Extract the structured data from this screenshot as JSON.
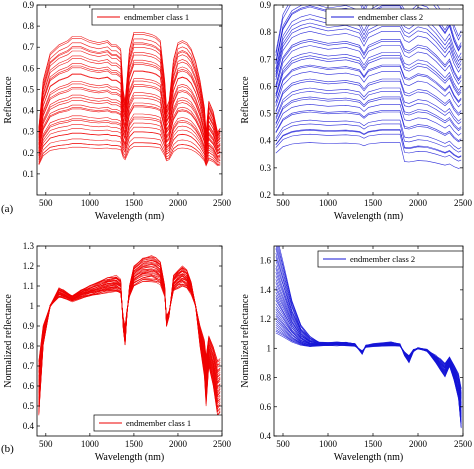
{
  "panel_tags": [
    "(a)",
    "(b)"
  ],
  "chart_data": [
    {
      "type": "line",
      "id": "a1",
      "xlabel": "Wavelength (nm)",
      "ylabel": "Reflectance",
      "xlim": [
        400,
        2500
      ],
      "ylim": [
        0,
        0.9
      ],
      "xticks": [
        500,
        1000,
        1500,
        2000,
        2500
      ],
      "yticks": [
        0.1,
        0.2,
        0.3,
        0.4,
        0.5,
        0.6,
        0.7,
        0.8,
        0.9
      ],
      "color": "#ee0000",
      "legend": "endmember class 1",
      "legend_position": "top-right",
      "grid": false,
      "series_count": 34,
      "value_range": {
        "min": 0.1,
        "max": 0.79
      },
      "series": [
        {
          "x": [
            420,
            470,
            550,
            650,
            750,
            800,
            900,
            1000,
            1100,
            1200,
            1250,
            1300,
            1350,
            1380,
            1400,
            1420,
            1450,
            1500,
            1600,
            1700,
            1750,
            1800,
            1850,
            1870,
            1900,
            1950,
            2000,
            2050,
            2100,
            2150,
            2200,
            2250,
            2300,
            2320,
            2350,
            2400,
            2450,
            2480
          ],
          "y": [
            0.32,
            0.55,
            0.68,
            0.72,
            0.74,
            0.76,
            0.76,
            0.74,
            0.73,
            0.74,
            0.72,
            0.72,
            0.7,
            0.5,
            0.45,
            0.55,
            0.7,
            0.78,
            0.78,
            0.77,
            0.76,
            0.74,
            0.55,
            0.42,
            0.45,
            0.65,
            0.73,
            0.74,
            0.73,
            0.7,
            0.64,
            0.55,
            0.42,
            0.3,
            0.45,
            0.4,
            0.3,
            0.32
          ]
        }
      ]
    },
    {
      "type": "line",
      "id": "a2",
      "xlabel": "Wavelength (nm)",
      "ylabel": "Reflectance",
      "xlim": [
        400,
        2500
      ],
      "ylim": [
        0.2,
        0.9
      ],
      "xticks": [
        500,
        1000,
        1500,
        2000,
        2500
      ],
      "yticks": [
        0.2,
        0.3,
        0.4,
        0.5,
        0.6,
        0.7,
        0.8,
        0.9
      ],
      "color": "#1515d6",
      "legend": "endmember class 2",
      "legend_position": "top-right",
      "grid": false,
      "series_count": 34,
      "value_range": {
        "min": 0.25,
        "max": 0.95
      },
      "series": [
        {
          "x": [
            420,
            500,
            600,
            700,
            800,
            900,
            1000,
            1200,
            1350,
            1400,
            1450,
            1600,
            1800,
            1850,
            1900,
            2000,
            2100,
            2200,
            2300,
            2350,
            2400,
            2450,
            2480
          ],
          "y": [
            0.72,
            0.86,
            0.92,
            0.94,
            0.95,
            0.94,
            0.93,
            0.94,
            0.92,
            0.88,
            0.92,
            0.95,
            0.95,
            0.93,
            0.92,
            0.95,
            0.94,
            0.9,
            0.85,
            0.88,
            0.82,
            0.78,
            0.8
          ]
        }
      ]
    },
    {
      "type": "line",
      "id": "b1",
      "xlabel": "Wavelength (nm)",
      "ylabel": "Normalized reflectance",
      "xlim": [
        400,
        2500
      ],
      "ylim": [
        0.35,
        1.3
      ],
      "xticks": [
        500,
        1000,
        1500,
        2000,
        2500
      ],
      "yticks": [
        0.4,
        0.5,
        0.6,
        0.7,
        0.8,
        0.9,
        1,
        1.1,
        1.2,
        1.3
      ],
      "color": "#ee0000",
      "legend": "endmember class 1",
      "legend_position": "bottom-right",
      "grid": false,
      "series_count": 34,
      "value_range": {
        "min": 0.39,
        "max": 1.29
      },
      "series": [
        {
          "x": [
            420,
            470,
            550,
            650,
            700,
            800,
            900,
            1000,
            1100,
            1200,
            1300,
            1350,
            1380,
            1400,
            1420,
            1450,
            1500,
            1600,
            1700,
            1750,
            1800,
            1850,
            1870,
            1900,
            1950,
            2000,
            2050,
            2100,
            2150,
            2200,
            2250,
            2300,
            2320,
            2350,
            2400,
            2450,
            2480
          ],
          "y": [
            0.45,
            0.8,
            1.0,
            1.09,
            1.08,
            1.05,
            1.08,
            1.1,
            1.12,
            1.14,
            1.15,
            1.13,
            0.88,
            0.8,
            0.95,
            1.1,
            1.2,
            1.24,
            1.25,
            1.24,
            1.22,
            1.1,
            0.9,
            0.95,
            1.15,
            1.18,
            1.2,
            1.18,
            1.12,
            1.0,
            0.8,
            0.65,
            0.5,
            0.7,
            0.6,
            0.45,
            0.47
          ]
        }
      ]
    },
    {
      "type": "line",
      "id": "b2",
      "xlabel": "Wavelength (nm)",
      "ylabel": "Normalized reflectance",
      "xlim": [
        400,
        2500
      ],
      "ylim": [
        0.4,
        1.7
      ],
      "xticks": [
        500,
        1000,
        1500,
        2000,
        2500
      ],
      "yticks": [
        0.4,
        0.6,
        0.8,
        1,
        1.2,
        1.4,
        1.6
      ],
      "color": "#1515d6",
      "legend": "endmember class 2",
      "legend_position": "top-right",
      "grid": false,
      "series_count": 34,
      "value_range": {
        "min": 0.45,
        "max": 1.6
      },
      "series": [
        {
          "x": [
            420,
            500,
            600,
            700,
            800,
            900,
            1000,
            1100,
            1200,
            1300,
            1380,
            1420,
            1500,
            1700,
            1800,
            1850,
            1900,
            1950,
            2000,
            2100,
            2200,
            2250,
            2300,
            2350,
            2400,
            2450,
            2480
          ],
          "y": [
            1.6,
            1.45,
            1.25,
            1.12,
            1.06,
            1.04,
            1.04,
            1.04,
            1.04,
            1.03,
            0.96,
            1.02,
            1.03,
            1.04,
            1.03,
            0.95,
            0.9,
            0.98,
            1.0,
            0.98,
            0.9,
            0.85,
            0.8,
            0.88,
            0.78,
            0.65,
            0.45
          ]
        }
      ]
    }
  ]
}
